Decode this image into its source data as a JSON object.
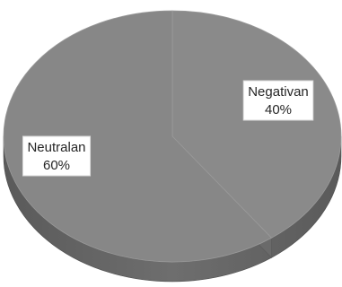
{
  "chart_data": {
    "type": "pie",
    "title": "",
    "style": "3d",
    "slices": [
      {
        "label": "Negativan",
        "value": 40,
        "percent_label": "40%",
        "color": "#8a8a8a"
      },
      {
        "label": "Neutralan",
        "value": 60,
        "percent_label": "60%",
        "color": "#878787"
      }
    ],
    "legend": "none",
    "data_labels": "category and percent, inside slices"
  }
}
